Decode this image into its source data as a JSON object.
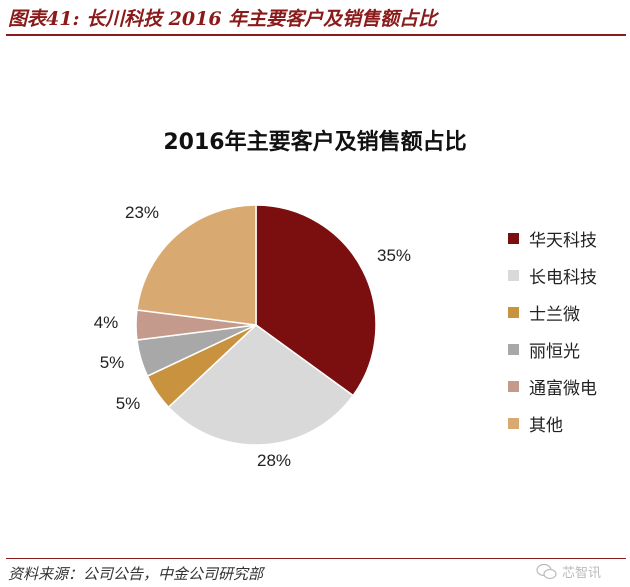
{
  "header": {
    "caption": "图表41: 长川科技 2016 年主要客户及销售额占比"
  },
  "footer": {
    "source": "资料来源：公司公告，中金公司研究部",
    "watermark": "芯智讯"
  },
  "chart_data": {
    "type": "pie",
    "title": "2016年主要客户及销售额占比",
    "categories": [
      "华天科技",
      "长电科技",
      "士兰微",
      "丽恒光",
      "通富微电",
      "其他"
    ],
    "values": [
      35,
      28,
      5,
      5,
      4,
      23
    ],
    "data_labels": [
      "35%",
      "28%",
      "5%",
      "5%",
      "4%",
      "23%"
    ],
    "colors": [
      "#7b0f0f",
      "#d9d9d9",
      "#c8923f",
      "#a8a8a8",
      "#c49a8c",
      "#d8aa72"
    ],
    "legend_position": "right",
    "start_angle": "12 o'clock",
    "direction": "clockwise"
  }
}
